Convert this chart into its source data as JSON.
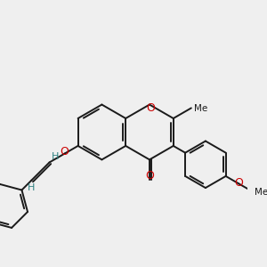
{
  "background_color": "#efefef",
  "bond_color": "#1a1a1a",
  "oxygen_color": "#cc0000",
  "hydrogen_color": "#2d8080",
  "lw": 1.4,
  "figsize": [
    3.0,
    3.0
  ],
  "dpi": 100,
  "xlim": [
    -4.5,
    4.5
  ],
  "ylim": [
    -3.5,
    3.5
  ]
}
